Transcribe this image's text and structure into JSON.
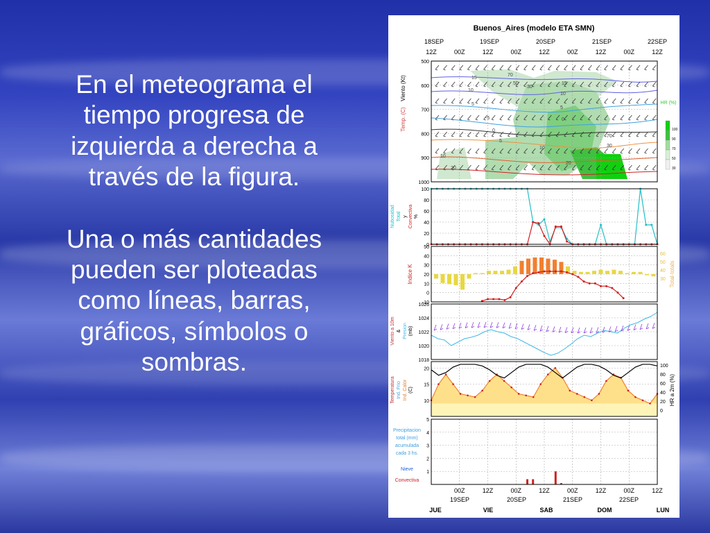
{
  "slide": {
    "paragraph_1": "En el meteograma el\ntiempo progresa de\nizquierda a derecha a\ntravés de la figura.",
    "paragraph_2": "Una o más cantidades\npueden ser ploteadas\ncomo líneas, barras,\ngráficos, símbolos o\nsombras."
  },
  "chart_data": {
    "type": "line",
    "title": "Buenos_Aires (modelo ETA SMN)",
    "top_axis": {
      "dates": [
        "18SEP",
        "19SEP",
        "20SEP",
        "21SEP",
        "22SEP"
      ],
      "hours": [
        "12Z",
        "00Z",
        "12Z",
        "00Z",
        "12Z",
        "00Z",
        "12Z",
        "00Z",
        "12Z"
      ]
    },
    "bottom_axis": {
      "hours": [
        "00Z",
        "12Z",
        "00Z",
        "12Z",
        "00Z",
        "12Z",
        "00Z",
        "12Z"
      ],
      "dates": [
        "19SEP",
        "20SEP",
        "21SEP",
        "22SEP"
      ],
      "days": [
        "JUE",
        "VIE",
        "SAB",
        "DOM",
        "LUN"
      ]
    },
    "colors": {
      "cloud_total": "#1fc0c8",
      "cloud_conv": "#d02020",
      "k_index": "#d02020",
      "tt_bar_low": "#e8d840",
      "tt_bar_high": "#f08030",
      "pressure": "#40b8e8",
      "temp": "#d02020",
      "rh": "#000000",
      "hr_green": "#38c838"
    },
    "panels": [
      {
        "name": "viento-temp-hr",
        "ylabel_parts": [
          "Temp. (C)",
          "Viento (Kt)"
        ],
        "y_ticks": [
          "500",
          "600",
          "700",
          "800",
          "900",
          "1000"
        ],
        "ylim": [
          1000,
          500
        ],
        "legend_title": "HR (%)",
        "legend_ticks": [
          "100",
          "90",
          "70",
          "50",
          "30"
        ],
        "contour_labels": [
          "15",
          "10",
          "5",
          "-5",
          "0",
          "5",
          "10",
          "20",
          "70",
          "30",
          "50",
          "15",
          "10",
          "5",
          "0",
          "70",
          "30",
          "10",
          "20"
        ]
      },
      {
        "name": "nubosidad",
        "ylabel_parts": [
          "Nubosidad",
          "Total",
          "y",
          "Convectiva",
          "%"
        ],
        "y_ticks": [
          "100",
          "80",
          "60",
          "40",
          "20",
          "0"
        ],
        "ylim": [
          0,
          100
        ],
        "series": [
          {
            "key": "total",
            "values": [
              100,
              100,
              100,
              100,
              100,
              100,
              100,
              100,
              100,
              100,
              100,
              100,
              100,
              100,
              100,
              100,
              100,
              100,
              40,
              35,
              45,
              5,
              30,
              30,
              10,
              0,
              0,
              0,
              0,
              0,
              35,
              0,
              0,
              0,
              0,
              0,
              0,
              100,
              35,
              35,
              0
            ]
          },
          {
            "key": "convectiva",
            "values": [
              0,
              0,
              0,
              0,
              0,
              0,
              0,
              0,
              0,
              0,
              0,
              0,
              0,
              0,
              0,
              0,
              0,
              0,
              40,
              38,
              15,
              0,
              32,
              32,
              5,
              0,
              0,
              0,
              0,
              0,
              0,
              0,
              0,
              0,
              0,
              0,
              0,
              0,
              0,
              0,
              0
            ]
          }
        ]
      },
      {
        "name": "indice-k",
        "ylabel_left": "Indice K",
        "ylabel_right": "Total-totals",
        "y_ticks": [
          "50",
          "40",
          "30",
          "20",
          "10",
          "0",
          "-10"
        ],
        "ylim": [
          -10,
          50
        ],
        "right_ticks": [
          "60",
          "50",
          "40",
          "30"
        ],
        "series": [
          {
            "key": "k_index",
            "x": [
              9,
              10,
              11,
              12,
              13,
              14,
              15,
              16,
              17,
              18,
              19,
              20,
              21,
              22,
              23,
              24,
              25,
              26,
              27,
              28,
              29,
              30,
              31,
              32,
              33,
              34
            ],
            "values": [
              -9,
              -7,
              -7,
              -7,
              -8,
              -5,
              5,
              12,
              18,
              21,
              22,
              23,
              23,
              23,
              23,
              22,
              20,
              17,
              12,
              10,
              10,
              7,
              7,
              5,
              0,
              -6
            ]
          },
          {
            "key": "total_totals",
            "values": [
              48,
              44,
              43,
              42,
              38,
              48,
              53,
              53,
              55,
              55,
              55,
              56,
              59,
              64,
              66,
              67,
              67,
              66,
              65,
              63,
              59,
              55,
              54,
              54,
              55,
              56,
              55,
              56,
              55,
              53,
              54,
              54,
              51,
              50
            ]
          }
        ]
      },
      {
        "name": "presion",
        "ylabel_parts": [
          "Viento a 10m",
          "&",
          "Presion",
          "(mb)"
        ],
        "y_ticks": [
          "1026",
          "1024",
          "1022",
          "1020",
          "1018"
        ],
        "ylim": [
          1018,
          1026
        ],
        "series": [
          {
            "key": "pressure",
            "values": [
              1021.5,
              1021,
              1020.8,
              1020,
              1020.5,
              1021,
              1021.2,
              1021.5,
              1022,
              1022.3,
              1022,
              1021.8,
              1021.3,
              1021,
              1020.5,
              1020,
              1019.5,
              1019,
              1018.6,
              1018.9,
              1019.5,
              1020.2,
              1021,
              1021.5,
              1021.3,
              1021.8,
              1022.2,
              1022,
              1021.8,
              1022.5,
              1023,
              1023.3,
              1023.8,
              1024.2,
              1024.8
            ]
          }
        ]
      },
      {
        "name": "temperatura",
        "ylabel_parts": [
          "Temperatura",
          "Ind. Frio",
          "Ind. Calor",
          "(C)"
        ],
        "ylabel_right": "HR a 2m (%)",
        "y_ticks": [
          "20",
          "15",
          "10"
        ],
        "ylim": [
          5,
          22
        ],
        "right_ticks": [
          "100",
          "80",
          "60",
          "40",
          "20",
          "0"
        ],
        "series": [
          {
            "key": "temperature",
            "values": [
              10,
              15,
              18,
              15,
              12,
              11.5,
              11,
              13,
              16,
              18,
              16,
              14,
              12,
              11.5,
              11,
              15,
              18,
              20,
              17,
              13,
              12,
              11,
              10,
              12,
              16,
              18,
              17,
              13,
              11,
              10,
              9,
              12
            ]
          },
          {
            "key": "rh",
            "values": [
              85,
              75,
              80,
              90,
              95,
              95,
              95,
              92,
              85,
              75,
              70,
              80,
              90,
              95,
              95,
              95,
              90,
              80,
              70,
              80,
              90,
              95,
              95,
              92,
              85,
              75,
              70,
              80,
              90,
              95,
              95,
              92
            ]
          }
        ]
      },
      {
        "name": "precipitacion",
        "ylabel_parts": [
          "Precipitacion",
          "total (mm)",
          "acumulada",
          "cada 3 hs."
        ],
        "legend_nieve": "Nieve",
        "legend_convectiva": "Convectiva",
        "y_ticks": [
          "5",
          "4",
          "3",
          "2",
          "1"
        ],
        "ylim": [
          0,
          5
        ],
        "bars": [
          {
            "x": 17,
            "value": 0.4
          },
          {
            "x": 18,
            "value": 0.4
          },
          {
            "x": 22,
            "value": 1.0
          },
          {
            "x": 23,
            "value": 0.1
          }
        ]
      }
    ]
  }
}
